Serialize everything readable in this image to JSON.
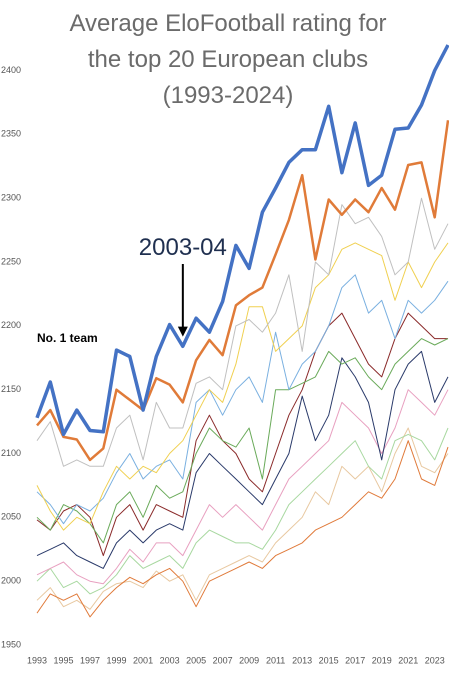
{
  "chart_data": {
    "type": "line",
    "title": [
      "Average EloFootball rating for",
      "the top 20 European clubs",
      "(1993-2024)"
    ],
    "annotations": [
      {
        "text": "No. 1 team",
        "x": 1993,
        "y": 2190
      },
      {
        "text": "2003-04",
        "x": 2004,
        "y": 2190
      }
    ],
    "x": [
      1993,
      1994,
      1995,
      1996,
      1997,
      1998,
      1999,
      2000,
      2001,
      2002,
      2003,
      2004,
      2005,
      2006,
      2007,
      2008,
      2009,
      2010,
      2011,
      2012,
      2013,
      2014,
      2015,
      2016,
      2017,
      2018,
      2019,
      2020,
      2021,
      2022,
      2023,
      2024
    ],
    "xlim": [
      1993,
      2024
    ],
    "xticks": [
      1993,
      1995,
      1997,
      1999,
      2001,
      2003,
      2005,
      2007,
      2009,
      2011,
      2013,
      2015,
      2017,
      2019,
      2021,
      2023
    ],
    "ylim": [
      1950,
      2420
    ],
    "yticks": [
      1950,
      2000,
      2050,
      2100,
      2150,
      2200,
      2250,
      2300,
      2350,
      2400
    ],
    "grid": false,
    "series": [
      {
        "color": "#e8c8a0",
        "values": [
          1985,
          1995,
          1980,
          1985,
          1978,
          1992,
          1998,
          2000,
          1995,
          2008,
          2000,
          2005,
          1985,
          2005,
          2010,
          2015,
          2020,
          2015,
          2030,
          2040,
          2050,
          2070,
          2060,
          2090,
          2080,
          2090,
          2070,
          2100,
          2120,
          2090,
          2085,
          2100
        ]
      },
      {
        "color": "#e07a3a",
        "values": [
          1975,
          1990,
          1985,
          1990,
          1972,
          1985,
          1995,
          2003,
          1998,
          2005,
          2010,
          2000,
          1980,
          2000,
          2005,
          2010,
          2015,
          2010,
          2020,
          2025,
          2030,
          2040,
          2045,
          2050,
          2060,
          2070,
          2065,
          2080,
          2110,
          2080,
          2075,
          2105
        ]
      },
      {
        "color": "#a8d8a0",
        "values": [
          2000,
          2010,
          1995,
          2000,
          1990,
          1995,
          2005,
          2020,
          2010,
          2015,
          2020,
          2010,
          2030,
          2040,
          2035,
          2030,
          2030,
          2025,
          2040,
          2060,
          2070,
          2080,
          2090,
          2100,
          2110,
          2090,
          2080,
          2110,
          2115,
          2110,
          2095,
          2120
        ]
      },
      {
        "color": "#e8a0c0",
        "values": [
          2005,
          2010,
          2015,
          2005,
          2000,
          1998,
          2010,
          2025,
          2015,
          2030,
          2030,
          2020,
          2040,
          2060,
          2050,
          2060,
          2050,
          2040,
          2060,
          2080,
          2090,
          2100,
          2110,
          2140,
          2130,
          2120,
          2100,
          2120,
          2150,
          2140,
          2130,
          2150
        ]
      },
      {
        "color": "#2a3a6a",
        "values": [
          2020,
          2025,
          2030,
          2020,
          2015,
          2010,
          2030,
          2040,
          2030,
          2040,
          2045,
          2040,
          2085,
          2100,
          2090,
          2080,
          2070,
          2060,
          2080,
          2100,
          2145,
          2110,
          2130,
          2175,
          2160,
          2140,
          2095,
          2150,
          2170,
          2180,
          2140,
          2160
        ]
      },
      {
        "color": "#8a2a2a",
        "values": [
          2048,
          2040,
          2055,
          2060,
          2050,
          2020,
          2050,
          2060,
          2040,
          2060,
          2055,
          2050,
          2110,
          2130,
          2110,
          2100,
          2080,
          2070,
          2100,
          2130,
          2150,
          2180,
          2200,
          2210,
          2190,
          2170,
          2160,
          2190,
          2210,
          2200,
          2190,
          2190
        ]
      },
      {
        "color": "#6aaa5a",
        "values": [
          2050,
          2040,
          2060,
          2055,
          2045,
          2030,
          2060,
          2070,
          2050,
          2075,
          2065,
          2070,
          2100,
          2120,
          2110,
          2105,
          2120,
          2080,
          2150,
          2150,
          2155,
          2160,
          2180,
          2170,
          2175,
          2160,
          2150,
          2170,
          2180,
          2190,
          2185,
          2190
        ]
      },
      {
        "color": "#7ab0e0",
        "values": [
          2070,
          2060,
          2045,
          2060,
          2055,
          2065,
          2085,
          2100,
          2080,
          2090,
          2095,
          2080,
          2140,
          2150,
          2130,
          2150,
          2160,
          2140,
          2195,
          2150,
          2170,
          2180,
          2200,
          2230,
          2240,
          2210,
          2220,
          2190,
          2220,
          2210,
          2220,
          2235
        ]
      },
      {
        "color": "#f0d050",
        "values": [
          2075,
          2055,
          2040,
          2050,
          2045,
          2070,
          2090,
          2080,
          2090,
          2085,
          2100,
          2110,
          2130,
          2150,
          2140,
          2170,
          2215,
          2215,
          2180,
          2190,
          2200,
          2230,
          2240,
          2260,
          2265,
          2260,
          2255,
          2220,
          2250,
          2230,
          2250,
          2265
        ]
      },
      {
        "color": "#c0c0c0",
        "values": [
          2110,
          2125,
          2090,
          2095,
          2090,
          2090,
          2120,
          2130,
          2095,
          2140,
          2120,
          2120,
          2155,
          2160,
          2150,
          2200,
          2205,
          2195,
          2210,
          2240,
          2180,
          2250,
          2240,
          2295,
          2280,
          2285,
          2270,
          2240,
          2250,
          2300,
          2260,
          2280
        ]
      },
      {
        "color": "#e07b39",
        "values": [
          2122,
          2134,
          2113,
          2111,
          2095,
          2104,
          2150,
          2142,
          2134,
          2159,
          2154,
          2140,
          2173,
          2189,
          2177,
          2216,
          2224,
          2230,
          2256,
          2283,
          2318,
          2252,
          2299,
          2287,
          2299,
          2289,
          2308,
          2291,
          2326,
          2328,
          2285,
          2361
        ]
      },
      {
        "color": "#4472c4",
        "values": [
          2128,
          2156,
          2115,
          2134,
          2118,
          2117,
          2181,
          2176,
          2134,
          2176,
          2201,
          2184,
          2206,
          2195,
          2219,
          2263,
          2245,
          2289,
          2308,
          2328,
          2338,
          2338,
          2372,
          2320,
          2359,
          2310,
          2318,
          2354,
          2355,
          2373,
          2400,
          2420
        ]
      }
    ]
  }
}
